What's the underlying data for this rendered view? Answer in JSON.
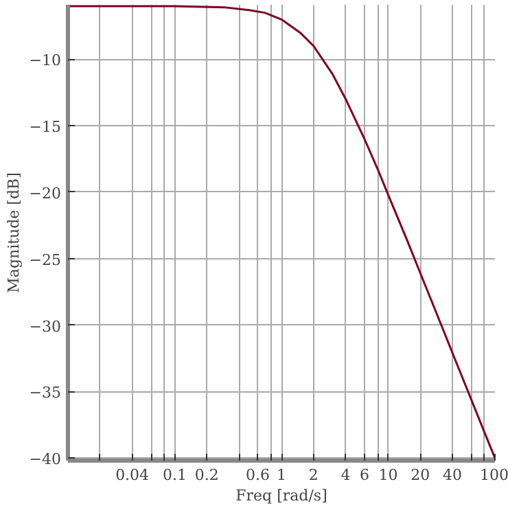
{
  "chart_data": {
    "type": "line",
    "xlabel": "Freq [rad/s]",
    "ylabel": "Magnitude [dB]",
    "log": "x",
    "grid": true,
    "marker": "none",
    "line_style": "solid",
    "x": [
      0.01,
      0.1,
      0.3,
      0.5,
      0.7,
      1,
      1.5,
      2,
      3,
      4,
      6,
      8,
      10,
      15,
      20,
      30,
      40,
      60,
      80,
      100
    ],
    "series": [
      {
        "color": "#800020",
        "values": [
          -6.0,
          -6.0,
          -6.1,
          -6.3,
          -6.5,
          -7.0,
          -8.0,
          -9.0,
          -11.1,
          -13.0,
          -16.0,
          -18.3,
          -20.2,
          -23.6,
          -26.1,
          -29.6,
          -32.1,
          -35.6,
          -38.1,
          -40.0
        ]
      }
    ],
    "xlim": [
      0.01,
      100
    ],
    "ylim": [
      -40.2,
      -5.9
    ],
    "xticks": [
      {
        "value": 0.02,
        "label": null
      },
      0.04,
      {
        "value": 0.06,
        "label": null
      },
      {
        "value": 0.08,
        "label": null
      },
      0.1,
      0.2,
      {
        "value": 0.4,
        "label": null
      },
      0.6,
      {
        "value": 0.8,
        "label": null
      },
      1,
      2,
      4,
      6,
      {
        "value": 8,
        "label": null
      },
      10,
      20,
      40,
      {
        "value": 60,
        "label": null
      },
      {
        "value": 80,
        "label": null
      },
      100
    ],
    "yticks": [
      -10,
      -15,
      -20,
      -25,
      -30,
      -35,
      -40
    ]
  }
}
